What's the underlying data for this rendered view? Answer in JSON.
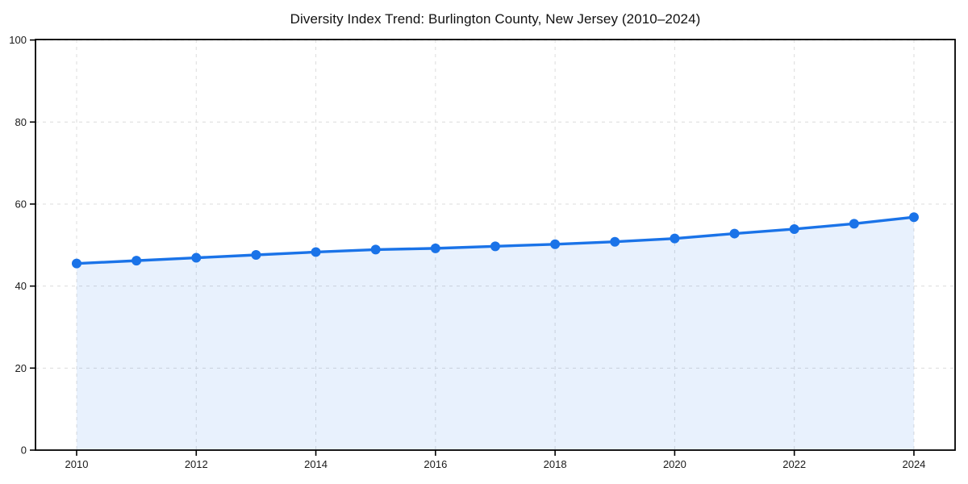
{
  "chart": {
    "title": "Diversity Index Trend: Burlington County, New Jersey (2010–2024)"
  },
  "chart_data": {
    "type": "line",
    "title": "Diversity Index Trend: Burlington County, New Jersey (2010–2024)",
    "series_name": "Diversity Index",
    "x": [
      2010,
      2011,
      2012,
      2013,
      2014,
      2015,
      2016,
      2017,
      2018,
      2019,
      2020,
      2021,
      2022,
      2023,
      2024
    ],
    "values": [
      45.5,
      46.2,
      46.9,
      47.6,
      48.3,
      48.9,
      49.2,
      49.7,
      50.2,
      50.8,
      51.6,
      52.8,
      53.9,
      55.2,
      56.8
    ],
    "xlabel": "",
    "ylabel": "",
    "ylim": [
      0,
      100
    ],
    "yticks": [
      0,
      20,
      40,
      60,
      80,
      100
    ],
    "xticks": [
      2010,
      2012,
      2014,
      2016,
      2018,
      2020,
      2022,
      2024
    ],
    "grid": true,
    "grid_style": "dashed",
    "legend_position": "none",
    "marker": "circle",
    "area_fill": true,
    "colors": {
      "line": "#1a73e8",
      "marker": "#1a73e8",
      "area_fill": "rgba(26,115,232,0.10)",
      "gridline": "#dcdcdc",
      "spine": "#000000",
      "tick_label": "#1a1a1a",
      "background": "#ffffff"
    }
  }
}
